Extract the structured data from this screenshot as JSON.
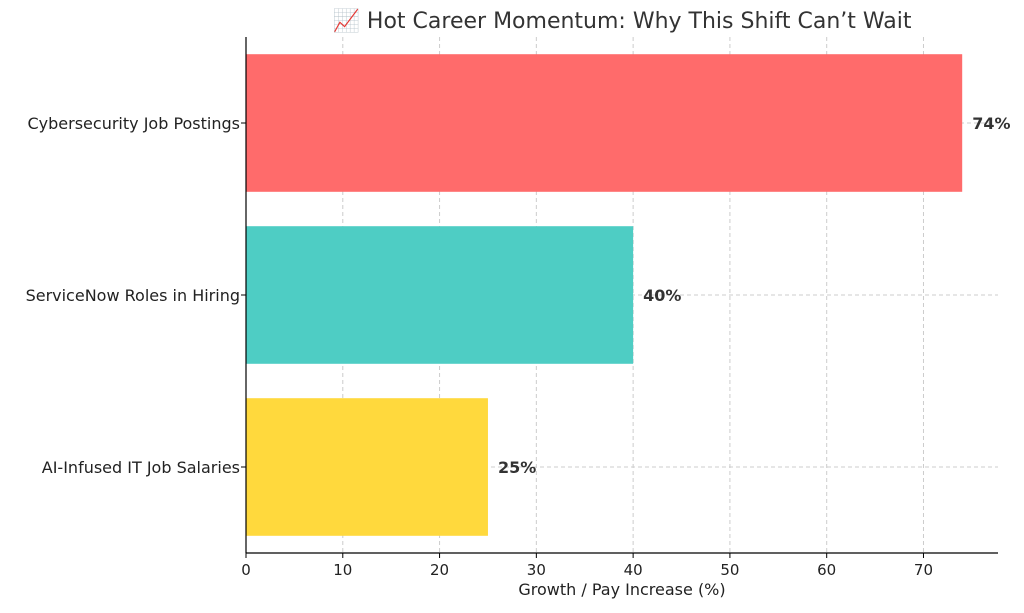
{
  "chart_data": {
    "type": "bar",
    "orientation": "horizontal",
    "title": "📈 Hot Career Momentum: Why This Shift Can’t Wait",
    "xlabel": "Growth / Pay Increase (%)",
    "ylabel": "",
    "categories": [
      "Cybersecurity Job Postings",
      "ServiceNow Roles in Hiring",
      "AI-Infused IT Job Salaries"
    ],
    "values": [
      74,
      40,
      25
    ],
    "data_labels": [
      "74%",
      "40%",
      "25%"
    ],
    "colors": [
      "#FF6B6B",
      "#4ECDC4",
      "#FFD93D"
    ],
    "xlim": [
      0,
      77.7
    ],
    "xticks": [
      0,
      10,
      20,
      30,
      40,
      50,
      60,
      70
    ],
    "grid": true,
    "legend": "none"
  }
}
